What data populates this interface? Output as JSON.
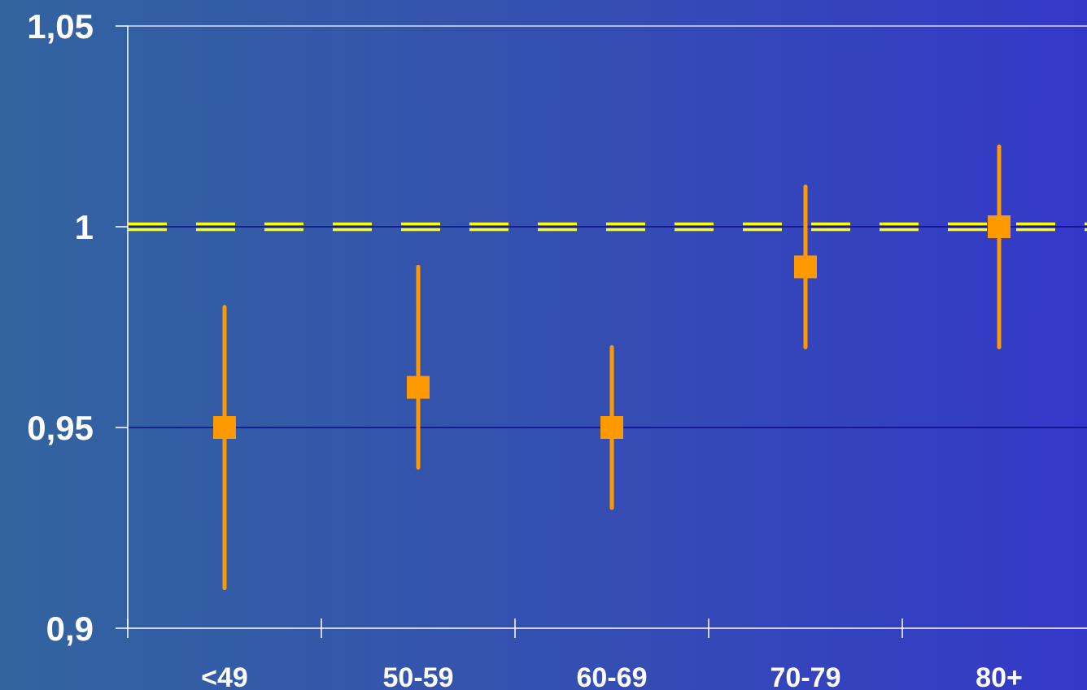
{
  "chart_data": {
    "type": "scatter",
    "categories": [
      "<49",
      "50-59",
      "60-69",
      "70-79",
      "80+"
    ],
    "values": [
      0.95,
      0.96,
      0.95,
      0.99,
      1.0
    ],
    "lower": [
      0.91,
      0.94,
      0.93,
      0.97,
      0.97
    ],
    "upper": [
      0.98,
      0.99,
      0.97,
      1.01,
      1.02
    ],
    "yticks": [
      "0,9",
      "0,95",
      "1",
      "1,05"
    ],
    "ytick_values": [
      0.9,
      0.95,
      1.0,
      1.05
    ],
    "ylim": [
      0.9,
      1.05
    ],
    "reference_line": 1.0,
    "grid": true,
    "legend": "none",
    "colors": {
      "marker": "#ff9900",
      "reference": "#ffff00",
      "grid": "#000080",
      "axis": "#ffffff",
      "text": "#ffffff"
    }
  }
}
